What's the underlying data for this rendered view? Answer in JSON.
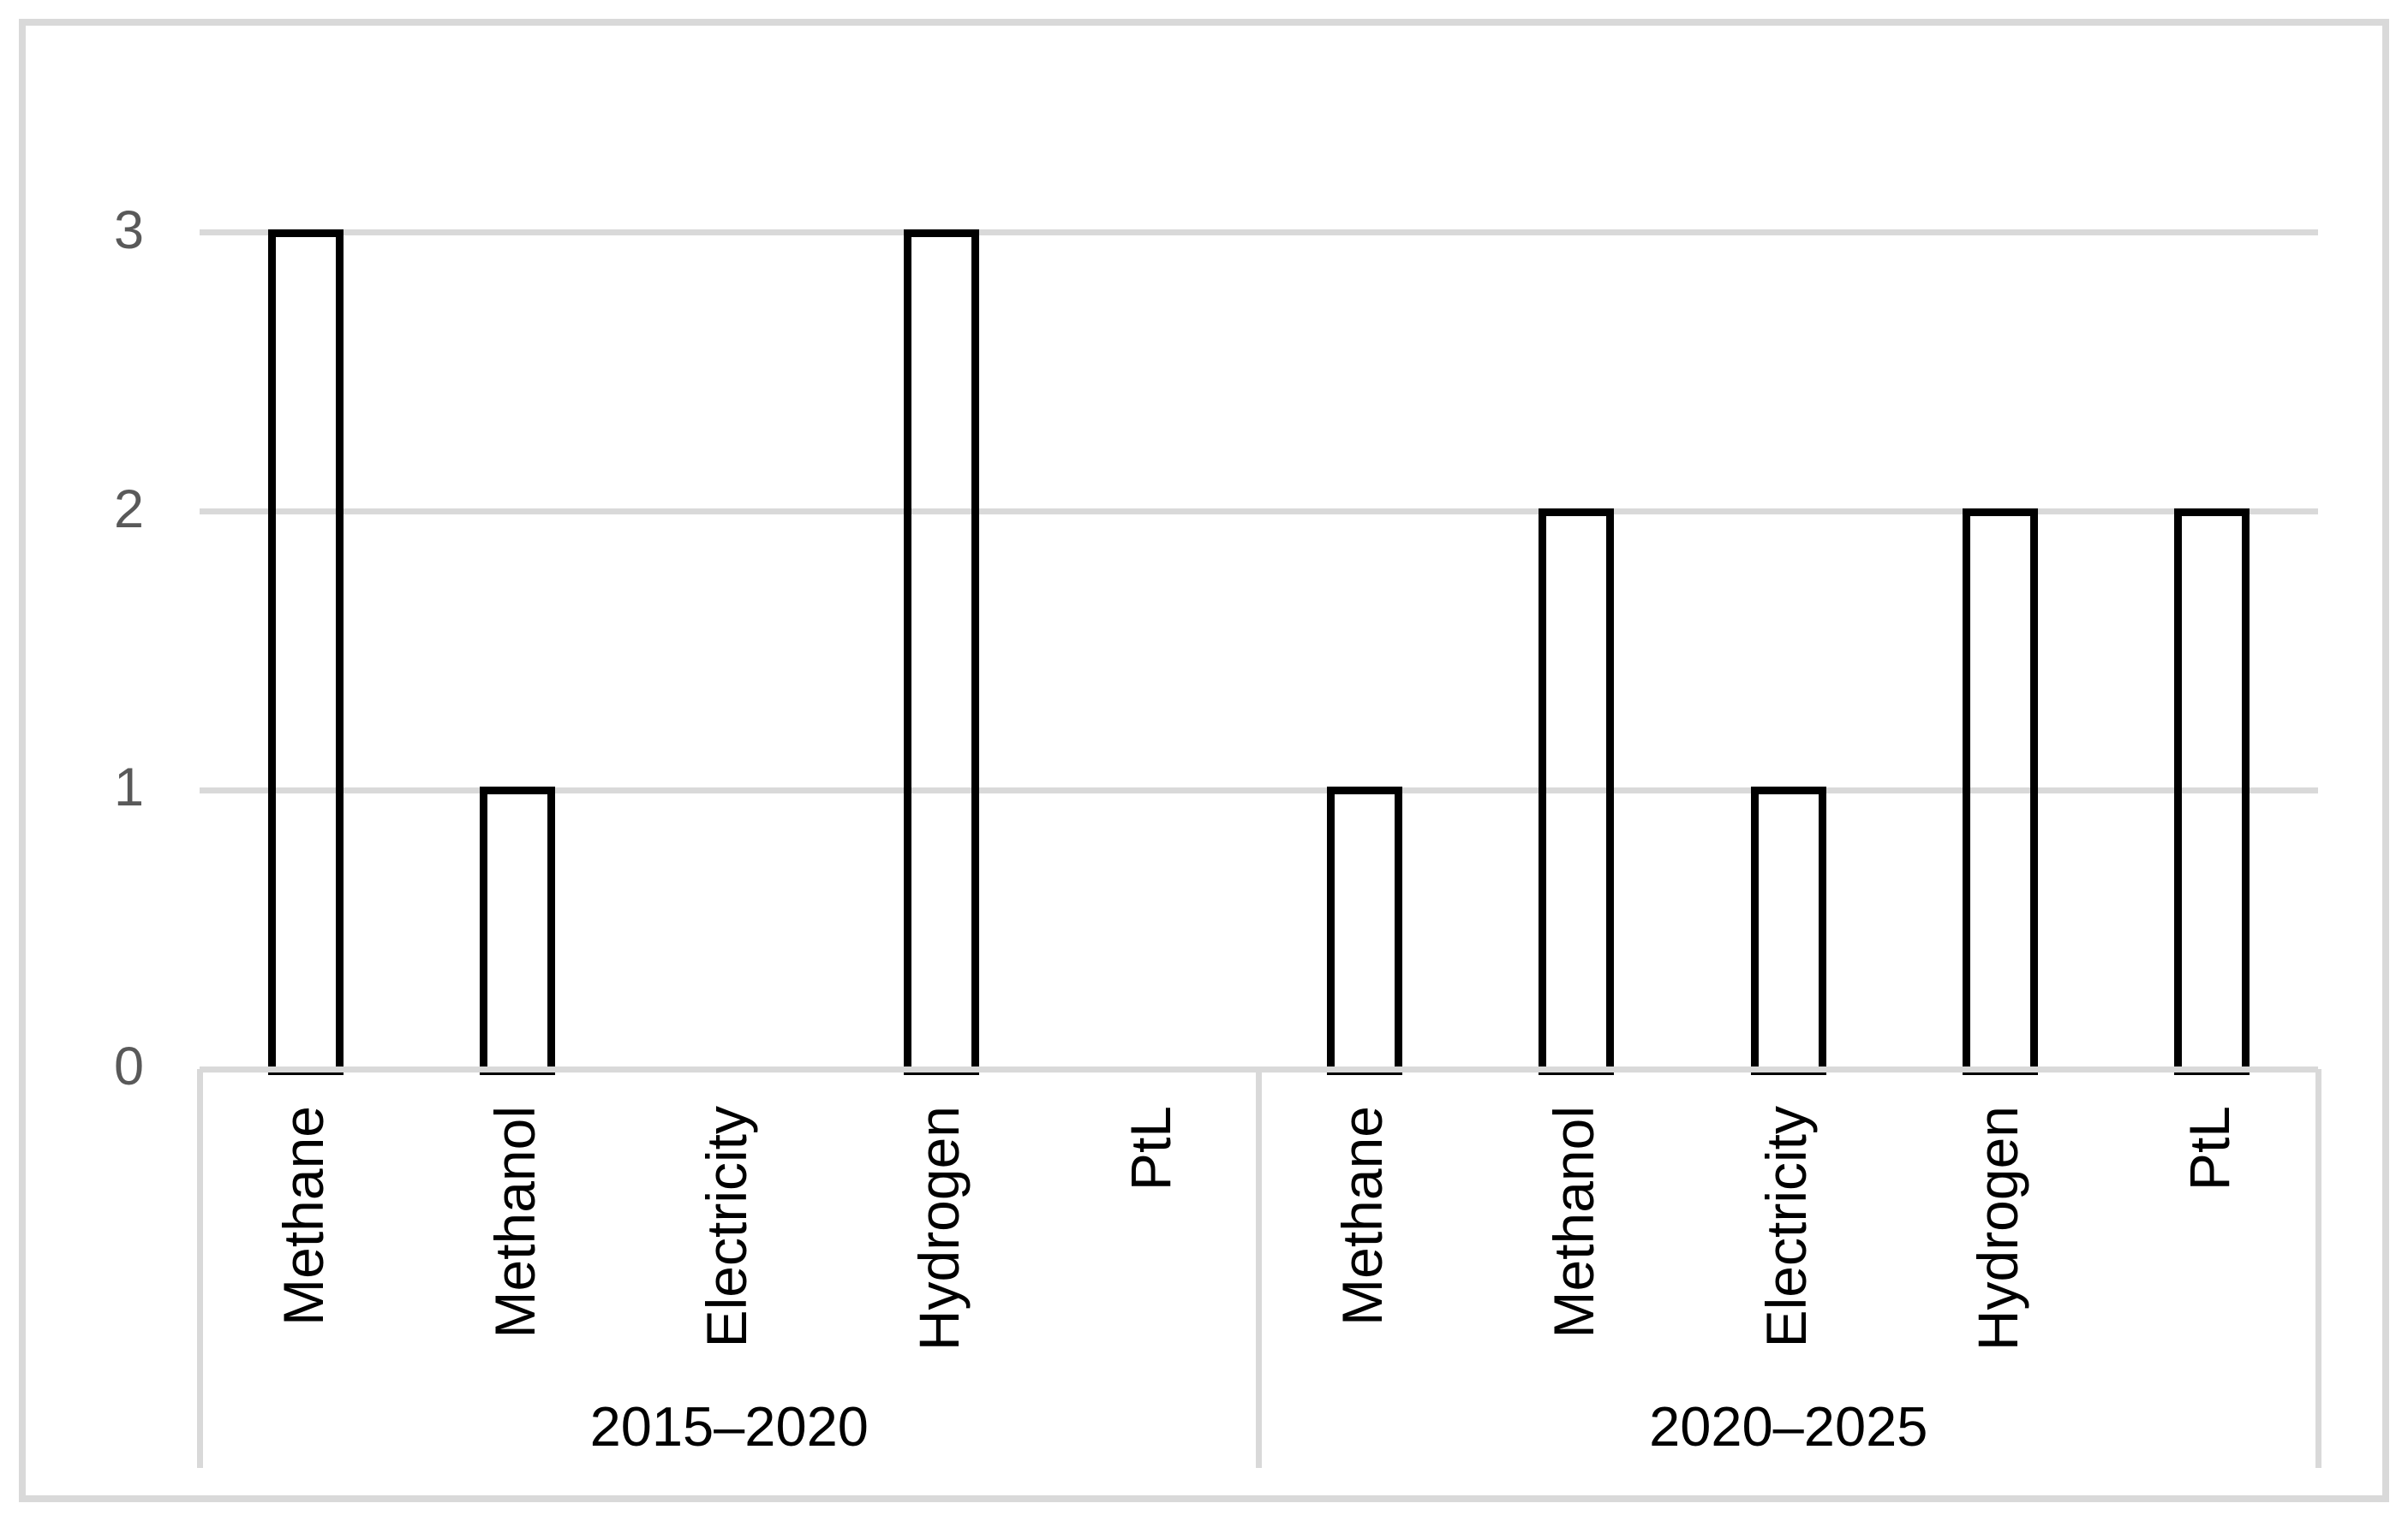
{
  "figure": {
    "background": "#ffffff",
    "border_color": "#d9d9d9"
  },
  "chart_data": {
    "type": "bar",
    "title": "",
    "xlabel": "",
    "ylabel": "",
    "categories": [
      "Methane",
      "Methanol",
      "Electricity",
      "Hydrogen",
      "PtL"
    ],
    "groups": [
      {
        "label": "2015–2020",
        "values": [
          3,
          1,
          0,
          3,
          0
        ]
      },
      {
        "label": "2020–2025",
        "values": [
          1,
          2,
          1,
          2,
          2
        ]
      }
    ],
    "y_axis": {
      "tick_labels": [
        "0",
        "1",
        "2",
        "3"
      ],
      "tick_values": [
        0,
        1,
        2,
        3
      ],
      "ylim": [
        0,
        3.5
      ],
      "gridlines": "horizontal-major"
    },
    "legend": "none",
    "bar_style": {
      "fill": "none",
      "border_color": "#000000"
    },
    "colors": {
      "gridline": "#d9d9d9",
      "axis_line": "#d9d9d9",
      "separator": "#d9d9d9",
      "tick_text": "#595959",
      "label_text": "#000000",
      "frame_border": "#d9d9d9"
    }
  }
}
